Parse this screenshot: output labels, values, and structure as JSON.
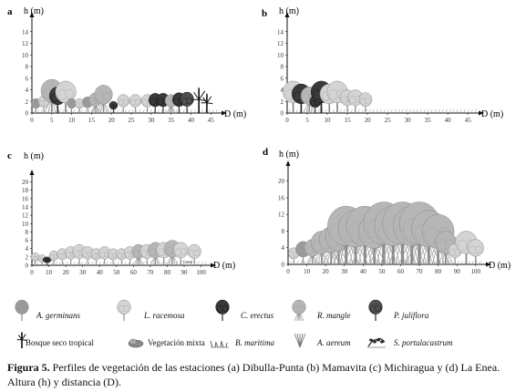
{
  "panels": [
    {
      "letter": "a",
      "ylabel": "h (m)",
      "xlabel": "D (m)",
      "yticks": [
        0,
        2,
        4,
        6,
        8,
        10,
        12,
        14
      ],
      "xticks": [
        0,
        5,
        10,
        15,
        20,
        25,
        30,
        35,
        40,
        45
      ],
      "ymax": 16,
      "xmax": 47,
      "vegetation": [
        {
          "x": 1,
          "h": 2.5,
          "type": "A. germinans"
        },
        {
          "x": 3,
          "h": 3,
          "type": "L. racemosa"
        },
        {
          "x": 5,
          "h": 5.8,
          "type": "R. mangle"
        },
        {
          "x": 6.5,
          "h": 4.5,
          "type": "C. erectus"
        },
        {
          "x": 8.5,
          "h": 5.5,
          "type": "L. racemosa"
        },
        {
          "x": 10,
          "h": 2.5,
          "type": "A. germinans"
        },
        {
          "x": 12,
          "h": 2.5,
          "type": "L. racemosa"
        },
        {
          "x": 14,
          "h": 2.8,
          "type": "A. germinans"
        },
        {
          "x": 16,
          "h": 3.5,
          "type": "R. mangle"
        },
        {
          "x": 18,
          "h": 4.8,
          "type": "R. mangle"
        },
        {
          "x": 20.5,
          "h": 2,
          "type": "C. erectus"
        },
        {
          "x": 23,
          "h": 3.2,
          "type": "L. racemosa"
        },
        {
          "x": 26,
          "h": 3.2,
          "type": "L. racemosa"
        },
        {
          "x": 29,
          "h": 3.2,
          "type": "L. racemosa"
        },
        {
          "x": 31,
          "h": 3.4,
          "type": "C. erectus"
        },
        {
          "x": 33,
          "h": 3.4,
          "type": "C. erectus"
        },
        {
          "x": 35,
          "h": 3.2,
          "type": "R. mangle"
        },
        {
          "x": 37,
          "h": 3.5,
          "type": "C. erectus"
        },
        {
          "x": 39,
          "h": 3.6,
          "type": "P. juliflora"
        },
        {
          "x": 42,
          "h": 4.2,
          "type": "Bosque seco tropical"
        },
        {
          "x": 44,
          "h": 3.2,
          "type": "Bosque seco tropical"
        }
      ]
    },
    {
      "letter": "b",
      "ylabel": "h (m)",
      "xlabel": "D (m)",
      "yticks": [
        0,
        2,
        4,
        6,
        8,
        10,
        12,
        14
      ],
      "xticks": [
        0,
        5,
        10,
        15,
        20,
        25,
        30,
        35,
        40,
        45
      ],
      "ymax": 16,
      "xmax": 47,
      "vegetation": [
        {
          "x": 1.5,
          "h": 5.5,
          "type": "L. racemosa"
        },
        {
          "x": 3.5,
          "h": 5,
          "type": "C. erectus"
        },
        {
          "x": 5.5,
          "h": 4.5,
          "type": "R. mangle"
        },
        {
          "x": 7,
          "h": 3,
          "type": "C. erectus"
        },
        {
          "x": 8.5,
          "h": 5.5,
          "type": "C. erectus"
        },
        {
          "x": 10.5,
          "h": 5,
          "type": "L. racemosa"
        },
        {
          "x": 12.5,
          "h": 5.5,
          "type": "L. racemosa"
        },
        {
          "x": 15,
          "h": 4,
          "type": "L. racemosa"
        },
        {
          "x": 17,
          "h": 4,
          "type": "L. racemosa"
        },
        {
          "x": 19.5,
          "h": 3.5,
          "type": "L. racemosa"
        }
      ]
    },
    {
      "letter": "c",
      "ylabel": "h (m)",
      "xlabel": "D (m)",
      "yticks": [
        0,
        2,
        4,
        6,
        8,
        10,
        12,
        14,
        16,
        18,
        20
      ],
      "xticks": [
        0,
        10,
        20,
        30,
        40,
        50,
        60,
        70,
        80,
        90,
        100
      ],
      "ymax": 21,
      "xmax": 104,
      "annotation": {
        "x": 92,
        "h": 0.6,
        "text": "Canal"
      },
      "vegetation": [
        {
          "x": 2,
          "h": 3,
          "type": "L. racemosa"
        },
        {
          "x": 6,
          "h": 2.5,
          "type": "L. racemosa"
        },
        {
          "x": 9,
          "h": 2,
          "type": "C. erectus"
        },
        {
          "x": 13,
          "h": 3.5,
          "type": "L. racemosa"
        },
        {
          "x": 18,
          "h": 4,
          "type": "L. racemosa"
        },
        {
          "x": 23,
          "h": 4.5,
          "type": "L. racemosa"
        },
        {
          "x": 28,
          "h": 5,
          "type": "L. racemosa"
        },
        {
          "x": 33,
          "h": 4.5,
          "type": "L. racemosa"
        },
        {
          "x": 38,
          "h": 4,
          "type": "L. racemosa"
        },
        {
          "x": 43,
          "h": 4.5,
          "type": "L. racemosa"
        },
        {
          "x": 48,
          "h": 4,
          "type": "L. racemosa"
        },
        {
          "x": 53,
          "h": 4,
          "type": "L. racemosa"
        },
        {
          "x": 58,
          "h": 4.5,
          "type": "L. racemosa"
        },
        {
          "x": 63,
          "h": 5,
          "type": "R. mangle"
        },
        {
          "x": 68,
          "h": 5,
          "type": "L. racemosa"
        },
        {
          "x": 73,
          "h": 5.5,
          "type": "R. mangle"
        },
        {
          "x": 78,
          "h": 5.5,
          "type": "L. racemosa"
        },
        {
          "x": 83,
          "h": 6,
          "type": "R. mangle"
        },
        {
          "x": 88,
          "h": 5.5,
          "type": "L. racemosa"
        },
        {
          "x": 96,
          "h": 5,
          "type": "L. racemosa"
        }
      ]
    },
    {
      "letter": "d",
      "ylabel": "h (m)",
      "xlabel": "D (m)",
      "yticks": [
        0,
        4,
        8,
        12,
        16,
        20
      ],
      "xticks": [
        0,
        10,
        20,
        30,
        40,
        50,
        60,
        70,
        80,
        90,
        100
      ],
      "ymax": 23,
      "xmax": 104,
      "vegetation": [
        {
          "x": 3,
          "h": 4,
          "type": "L. racemosa"
        },
        {
          "x": 8,
          "h": 5.5,
          "type": "A. germinans"
        },
        {
          "x": 13,
          "h": 6,
          "type": "R. mangle"
        },
        {
          "x": 18,
          "h": 8,
          "type": "R. mangle"
        },
        {
          "x": 23,
          "h": 9,
          "type": "R. mangle"
        },
        {
          "x": 27,
          "h": 10,
          "type": "R. mangle"
        },
        {
          "x": 31,
          "h": 14,
          "type": "R. mangle"
        },
        {
          "x": 36,
          "h": 13,
          "type": "R. mangle"
        },
        {
          "x": 41,
          "h": 14,
          "type": "R. mangle"
        },
        {
          "x": 46,
          "h": 12,
          "type": "R. mangle"
        },
        {
          "x": 51,
          "h": 15,
          "type": "R. mangle"
        },
        {
          "x": 56,
          "h": 14,
          "type": "R. mangle"
        },
        {
          "x": 61,
          "h": 15,
          "type": "R. mangle"
        },
        {
          "x": 66,
          "h": 14,
          "type": "R. mangle"
        },
        {
          "x": 70,
          "h": 15,
          "type": "R. mangle"
        },
        {
          "x": 75,
          "h": 13,
          "type": "R. mangle"
        },
        {
          "x": 80,
          "h": 12,
          "type": "R. mangle"
        },
        {
          "x": 84,
          "h": 8,
          "type": "R. mangle"
        },
        {
          "x": 89,
          "h": 5,
          "type": "L. racemosa"
        },
        {
          "x": 95,
          "h": 8,
          "type": "L. racemosa"
        },
        {
          "x": 100,
          "h": 6,
          "type": "L. racemosa"
        }
      ]
    }
  ],
  "legend": [
    {
      "label": "A. germinans",
      "italic": true
    },
    {
      "label": "L. racemosa",
      "italic": true
    },
    {
      "label": "C. erectus",
      "italic": true
    },
    {
      "label": "R. mangle",
      "italic": true
    },
    {
      "label": "P. juliflora",
      "italic": true
    },
    {
      "label": "Bosque seco tropical",
      "italic": false
    },
    {
      "label": "Vegetación mixta",
      "italic": false
    },
    {
      "label": "B. maritima",
      "italic": true
    },
    {
      "label": "A. aereum",
      "italic": true
    },
    {
      "label": "S. portulacastrum",
      "italic": true
    }
  ],
  "caption": {
    "title": "Figura 5.",
    "text": " Perfiles de vegetación de las estaciones (a) Dibulla-Punta (b) Mamavita (c) Michiragua y (d) La Enea. Altura (h) y distancia (D)."
  },
  "colors": {
    "A. germinans": "#9a9a9a",
    "L. racemosa": "#d4d4d4",
    "C. erectus": "#3a3a3a",
    "R. mangle": "#b6b6b6",
    "P. juliflora": "#505050",
    "Bosque seco tropical": "#1c1c1c",
    "Vegetación mixta": "#8a8a8a",
    "B. maritima": "#555555",
    "A. aereum": "#777777",
    "S. portulacastrum": "#2a2a2a"
  }
}
